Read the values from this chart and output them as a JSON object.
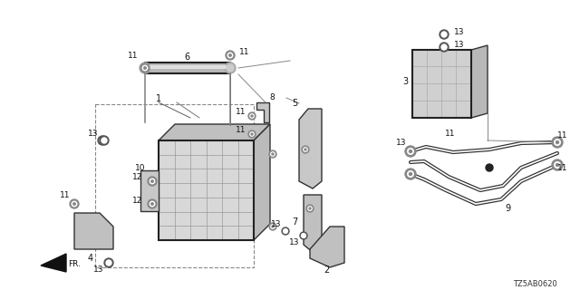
{
  "diagram_id": "TZ5AB0620",
  "bg": "#ffffff",
  "lc": "#2a2a2a",
  "figsize": [
    6.4,
    3.2
  ],
  "dpi": 100
}
